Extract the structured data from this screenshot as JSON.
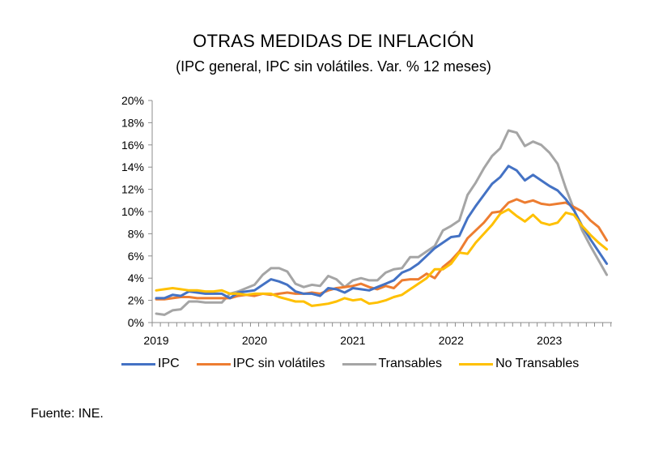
{
  "chart_data": {
    "type": "line",
    "title": "OTRAS MEDIDAS DE INFLACIÓN",
    "subtitle": "(IPC general, IPC sin volátiles.  Var. % 12 meses)",
    "xlabel": "",
    "ylabel": "",
    "x_start": "2019-01",
    "x_end": "2023-08",
    "x_tick_labels": [
      "2019",
      "2020",
      "2021",
      "2022",
      "2023"
    ],
    "y_tick_labels": [
      "0%",
      "2%",
      "4%",
      "6%",
      "8%",
      "10%",
      "12%",
      "14%",
      "16%",
      "18%",
      "20%"
    ],
    "ylim": [
      0,
      20
    ],
    "grid": false,
    "legend_position": "bottom",
    "series": [
      {
        "name": "IPC",
        "color": "#4472C4",
        "values": [
          2.2,
          2.2,
          2.5,
          2.4,
          2.8,
          2.7,
          2.6,
          2.6,
          2.6,
          2.2,
          2.7,
          2.8,
          2.9,
          3.4,
          3.9,
          3.7,
          3.4,
          2.8,
          2.6,
          2.6,
          2.4,
          3.1,
          3.0,
          2.7,
          3.1,
          3.0,
          2.9,
          3.2,
          3.5,
          3.8,
          4.5,
          4.8,
          5.3,
          6.0,
          6.7,
          7.2,
          7.7,
          7.8,
          9.4,
          10.5,
          11.5,
          12.5,
          13.1,
          14.1,
          13.7,
          12.8,
          13.3,
          12.8,
          12.3,
          11.9,
          11.1,
          10.1,
          8.7,
          7.5,
          6.4,
          5.3
        ]
      },
      {
        "name": "IPC sin volátiles",
        "color": "#ED7D31",
        "values": [
          2.1,
          2.1,
          2.2,
          2.3,
          2.3,
          2.2,
          2.2,
          2.2,
          2.2,
          2.2,
          2.4,
          2.5,
          2.4,
          2.6,
          2.5,
          2.6,
          2.7,
          2.6,
          2.6,
          2.7,
          2.6,
          2.9,
          3.1,
          3.2,
          3.3,
          3.5,
          3.2,
          3.0,
          3.3,
          3.1,
          3.8,
          3.9,
          3.9,
          4.4,
          4.0,
          5.0,
          5.6,
          6.4,
          7.6,
          8.3,
          9.0,
          9.9,
          10.0,
          10.8,
          11.1,
          10.8,
          11.0,
          10.7,
          10.6,
          10.7,
          10.8,
          10.4,
          10.0,
          9.2,
          8.6,
          7.4
        ]
      },
      {
        "name": "Transables",
        "color": "#A5A5A5",
        "values": [
          0.8,
          0.7,
          1.1,
          1.2,
          1.9,
          1.9,
          1.8,
          1.8,
          1.8,
          2.6,
          2.8,
          3.1,
          3.4,
          4.3,
          4.9,
          4.9,
          4.6,
          3.5,
          3.2,
          3.4,
          3.3,
          4.2,
          3.9,
          3.2,
          3.8,
          4.0,
          3.8,
          3.8,
          4.5,
          4.8,
          4.9,
          5.9,
          5.9,
          6.4,
          6.9,
          8.3,
          8.7,
          9.2,
          11.5,
          12.6,
          13.9,
          15.0,
          15.7,
          17.3,
          17.1,
          15.9,
          16.3,
          16.0,
          15.3,
          14.3,
          12.1,
          10.2,
          8.3,
          6.9,
          5.6,
          4.3
        ]
      },
      {
        "name": "No Transables",
        "color": "#FFC000",
        "values": [
          2.9,
          3.0,
          3.1,
          3.0,
          2.9,
          2.9,
          2.8,
          2.8,
          2.9,
          2.6,
          2.6,
          2.5,
          2.6,
          2.6,
          2.6,
          2.3,
          2.1,
          1.9,
          1.9,
          1.5,
          1.6,
          1.7,
          1.9,
          2.2,
          2.0,
          2.1,
          1.7,
          1.8,
          2.0,
          2.3,
          2.5,
          3.0,
          3.5,
          4.0,
          4.8,
          4.8,
          5.3,
          6.3,
          6.2,
          7.2,
          8.0,
          8.8,
          9.8,
          10.2,
          9.6,
          9.1,
          9.7,
          9.0,
          8.8,
          9.0,
          9.9,
          9.7,
          8.7,
          7.9,
          7.2,
          6.6
        ]
      }
    ]
  },
  "source": "Fuente: INE."
}
